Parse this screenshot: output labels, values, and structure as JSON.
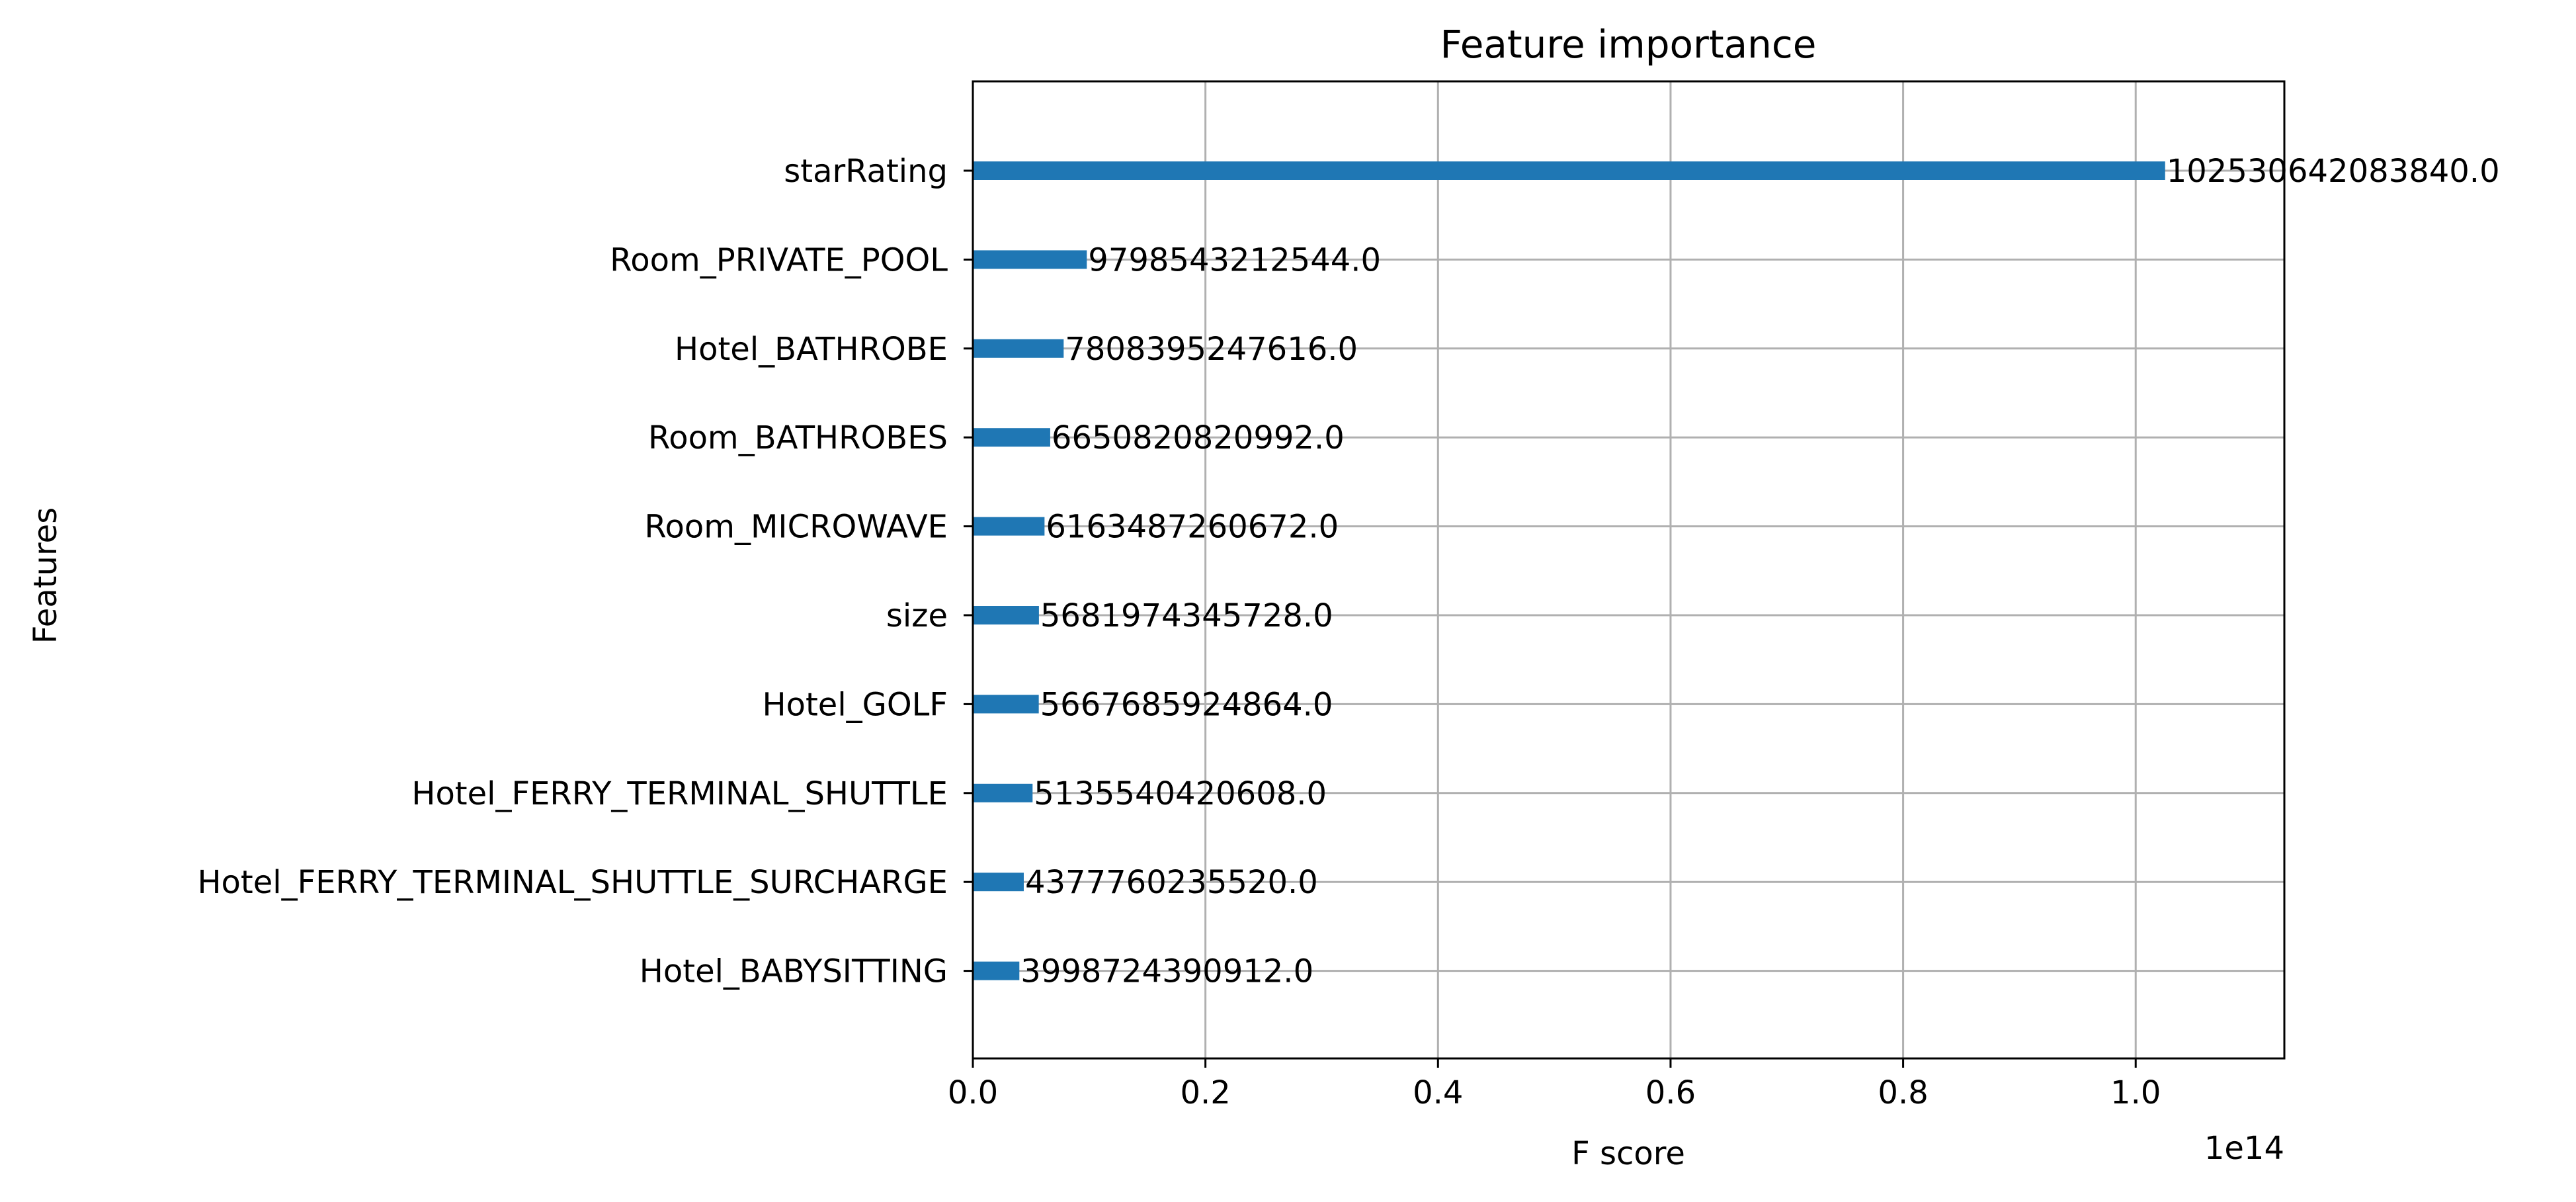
{
  "chart_data": {
    "type": "bar",
    "orientation": "horizontal",
    "title": "Feature importance",
    "xlabel": "F score",
    "ylabel": "Features",
    "x_offset_label": "1e14",
    "xlim": [
      0,
      112783706292224
    ],
    "grid": true,
    "x_tick_values": [
      0,
      20000000000000,
      40000000000000,
      60000000000000,
      80000000000000,
      100000000000000
    ],
    "x_tick_labels": [
      "0.0",
      "0.2",
      "0.4",
      "0.6",
      "0.8",
      "1.0"
    ],
    "bar_color": "#1f77b4",
    "categories": [
      "starRating",
      "Room_PRIVATE_POOL",
      "Hotel_BATHROBE",
      "Room_BATHROBES",
      "Room_MICROWAVE",
      "size",
      "Hotel_GOLF",
      "Hotel_FERRY_TERMINAL_SHUTTLE",
      "Hotel_FERRY_TERMINAL_SHUTTLE_SURCHARGE",
      "Hotel_BABYSITTING"
    ],
    "values": [
      102530642083840.0,
      9798543212544.0,
      7808395247616.0,
      6650820820992.0,
      6163487260672.0,
      5681974345728.0,
      5667685924864.0,
      5135540420608.0,
      4377760235520.0,
      3998724390912.0
    ],
    "value_labels": [
      "102530642083840.0",
      "9798543212544.0",
      "7808395247616.0",
      "6650820820992.0",
      "6163487260672.0",
      "5681974345728.0",
      "5667685924864.0",
      "5135540420608.0",
      "4377760235520.0",
      "3998724390912.0"
    ]
  }
}
